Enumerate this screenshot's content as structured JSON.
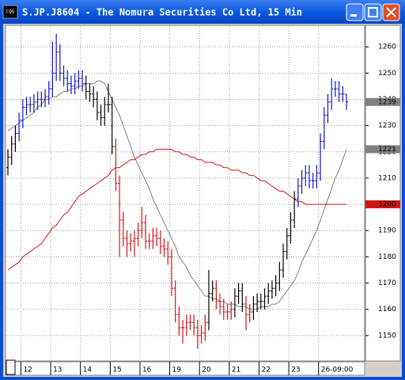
{
  "icon_label": "CQG",
  "chart_data": {
    "type": "ohlc",
    "title": "S.JP.J8604 - The Nomura Securities Co Ltd, 15 Min",
    "categories": [
      null,
      null,
      null,
      null,
      "12",
      null,
      null,
      null,
      null,
      null,
      null,
      null,
      "13",
      null,
      null,
      null,
      null,
      null,
      null,
      null,
      "14",
      null,
      null,
      null,
      null,
      null,
      null,
      null,
      "15",
      null,
      null,
      null,
      null,
      null,
      null,
      null,
      "16",
      null,
      null,
      null,
      null,
      null,
      null,
      null,
      "19",
      null,
      null,
      null,
      null,
      null,
      null,
      null,
      "20",
      null,
      null,
      null,
      null,
      null,
      null,
      null,
      "21",
      null,
      null,
      null,
      null,
      null,
      null,
      null,
      "22",
      null,
      null,
      null,
      null,
      null,
      null,
      null,
      "23",
      null,
      null,
      null,
      null,
      null,
      null,
      null,
      "26-09:00",
      null,
      null,
      null,
      null,
      null,
      null,
      null
    ],
    "open": [
      1214,
      1218,
      1223,
      1227,
      1232,
      1237,
      1238,
      1238,
      1239,
      1240,
      1240,
      1241,
      1244,
      1250,
      1258,
      1250,
      1248,
      1246,
      1245,
      1247,
      1248,
      1246,
      1243,
      1242,
      1240,
      1235,
      1233,
      1238,
      1238,
      1222,
      1208,
      1194,
      1187,
      1185,
      1186,
      1187,
      1190,
      1193,
      1186,
      1186,
      1188,
      1187,
      1184,
      1183,
      1180,
      1168,
      1158,
      1153,
      1153,
      1155,
      1155,
      1153,
      1150,
      1151,
      1155,
      1166,
      1168,
      1163,
      1161,
      1159,
      1159,
      1160,
      1165,
      1167,
      1162,
      1158,
      1159,
      1162,
      1163,
      1163,
      1165,
      1167,
      1168,
      1170,
      1175,
      1182,
      1188,
      1194,
      1202,
      1207,
      1210,
      1212,
      1209,
      1209,
      1212,
      1224,
      1234,
      1239,
      1244,
      1244,
      1242,
      1242
    ],
    "high": [
      1221,
      1226,
      1230,
      1235,
      1240,
      1241,
      1241,
      1242,
      1243,
      1243,
      1244,
      1247,
      1262,
      1265,
      1261,
      1253,
      1251,
      1249,
      1250,
      1251,
      1251,
      1249,
      1246,
      1245,
      1243,
      1238,
      1241,
      1246,
      1241,
      1225,
      1211,
      1197,
      1190,
      1189,
      1190,
      1193,
      1199,
      1196,
      1189,
      1191,
      1191,
      1190,
      1187,
      1186,
      1183,
      1171,
      1161,
      1156,
      1158,
      1158,
      1158,
      1156,
      1154,
      1158,
      1175,
      1171,
      1171,
      1166,
      1164,
      1162,
      1163,
      1168,
      1170,
      1170,
      1165,
      1162,
      1165,
      1166,
      1166,
      1168,
      1170,
      1171,
      1173,
      1178,
      1185,
      1191,
      1197,
      1205,
      1210,
      1213,
      1215,
      1215,
      1212,
      1215,
      1227,
      1237,
      1242,
      1248,
      1247,
      1247,
      1245,
      1242
    ],
    "low": [
      1211,
      1215,
      1220,
      1224,
      1229,
      1234,
      1235,
      1235,
      1236,
      1237,
      1237,
      1238,
      1241,
      1247,
      1247,
      1245,
      1243,
      1242,
      1242,
      1244,
      1243,
      1240,
      1239,
      1237,
      1232,
      1230,
      1230,
      1235,
      1219,
      1205,
      1180,
      1184,
      1180,
      1182,
      1180,
      1184,
      1187,
      1183,
      1183,
      1183,
      1184,
      1181,
      1180,
      1177,
      1165,
      1155,
      1150,
      1147,
      1150,
      1152,
      1150,
      1145,
      1147,
      1148,
      1152,
      1163,
      1160,
      1158,
      1156,
      1156,
      1156,
      1157,
      1162,
      1159,
      1152,
      1155,
      1156,
      1159,
      1160,
      1160,
      1162,
      1164,
      1165,
      1167,
      1172,
      1179,
      1185,
      1191,
      1199,
      1204,
      1207,
      1206,
      1206,
      1206,
      1209,
      1221,
      1231,
      1236,
      1241,
      1239,
      1239,
      1236
    ],
    "close": [
      1218,
      1223,
      1227,
      1232,
      1237,
      1238,
      1238,
      1239,
      1240,
      1240,
      1241,
      1244,
      1250,
      1258,
      1250,
      1248,
      1246,
      1245,
      1247,
      1248,
      1246,
      1243,
      1242,
      1240,
      1235,
      1233,
      1238,
      1238,
      1222,
      1208,
      1194,
      1187,
      1185,
      1186,
      1187,
      1190,
      1193,
      1186,
      1186,
      1188,
      1187,
      1184,
      1183,
      1180,
      1168,
      1158,
      1153,
      1153,
      1155,
      1155,
      1153,
      1150,
      1151,
      1155,
      1166,
      1168,
      1163,
      1161,
      1159,
      1159,
      1160,
      1165,
      1167,
      1162,
      1158,
      1159,
      1162,
      1163,
      1163,
      1165,
      1167,
      1168,
      1170,
      1175,
      1182,
      1188,
      1194,
      1202,
      1207,
      1210,
      1212,
      1209,
      1209,
      1212,
      1224,
      1234,
      1239,
      1244,
      1244,
      1242,
      1242,
      1239
    ],
    "bar_colors": {
      "above": "#1414c8",
      "below": "#d01414",
      "between": "#000000"
    },
    "tag_color": "#808080",
    "series": [
      {
        "color": "#808080",
        "values": [
          1228,
          1229,
          1230,
          1231,
          1232,
          1233,
          1234,
          1235,
          1237,
          1238,
          1240,
          1240,
          1241,
          1241,
          1242,
          1243,
          1243,
          1244,
          1244,
          1245,
          1245,
          1246,
          1246,
          1246,
          1247,
          1247,
          1246,
          1243,
          1240,
          1237,
          1234,
          1230,
          1226,
          1222,
          1218,
          1215,
          1212,
          1209,
          1206,
          1202,
          1199,
          1196,
          1193,
          1190,
          1187,
          1184,
          1180,
          1178,
          1176,
          1173,
          1171,
          1169,
          1167,
          1165,
          1165,
          1164,
          1164,
          1163,
          1163,
          1162,
          1162,
          1162,
          1161,
          1161,
          1161,
          1160,
          1160,
          1160,
          1161,
          1161,
          1161,
          1162,
          1162,
          1163,
          1165,
          1167,
          1169,
          1171,
          1174,
          1178,
          1181,
          1184,
          1187,
          1190,
          1194,
          1198,
          1202,
          1206,
          1210,
          1213,
          1217,
          1221
        ]
      },
      {
        "color": "#d01414",
        "values": [
          1175,
          1176,
          1177,
          1178,
          1180,
          1181,
          1182,
          1183,
          1184,
          1185,
          1187,
          1189,
          1191,
          1192,
          1194,
          1196,
          1197,
          1199,
          1201,
          1203,
          1204,
          1205,
          1206,
          1207,
          1208,
          1209,
          1210,
          1211,
          1213,
          1214,
          1214,
          1215,
          1216,
          1217,
          1217,
          1218,
          1219,
          1219,
          1220,
          1220,
          1221,
          1221,
          1221,
          1221,
          1221,
          1220,
          1220,
          1219,
          1219,
          1218,
          1218,
          1217,
          1217,
          1216,
          1216,
          1216,
          1215,
          1215,
          1214,
          1214,
          1213,
          1213,
          1213,
          1212,
          1212,
          1211,
          1211,
          1210,
          1209,
          1209,
          1208,
          1207,
          1206,
          1205,
          1205,
          1204,
          1203,
          1202,
          1201,
          1201,
          1200,
          1200,
          1200,
          1200,
          1200,
          1200,
          1200,
          1200,
          1200,
          1200,
          1200,
          1200
        ]
      }
    ],
    "ylim": [
      1140.3,
      1268.2
    ],
    "yticks": [
      1150,
      1160,
      1170,
      1180,
      1190,
      1200,
      1210,
      1220,
      1230,
      1240,
      1250,
      1260
    ],
    "grid": true
  }
}
